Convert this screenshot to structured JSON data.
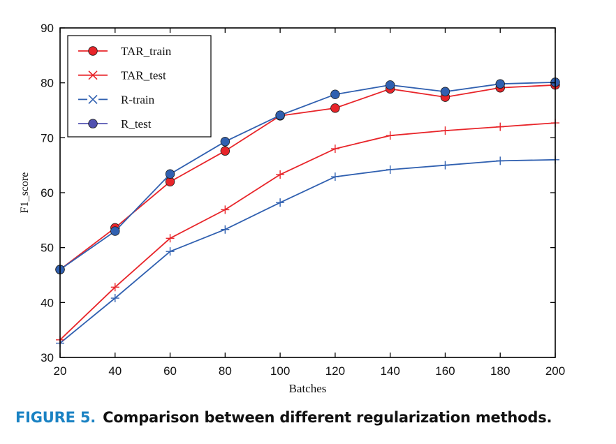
{
  "caption": {
    "label": "FIGURE 5.",
    "text": "Comparison between different regularization methods."
  },
  "chart_data": {
    "type": "line",
    "title": "",
    "xlabel": "Batches",
    "ylabel": "F1_score",
    "xlim": [
      20,
      200
    ],
    "ylim": [
      30,
      90
    ],
    "xticks": [
      20,
      40,
      60,
      80,
      100,
      120,
      140,
      160,
      180,
      200
    ],
    "yticks": [
      30,
      40,
      50,
      60,
      70,
      80,
      90
    ],
    "grid": false,
    "legend_position": "top-left",
    "x": [
      20,
      40,
      60,
      80,
      100,
      120,
      140,
      160,
      180,
      200
    ],
    "series": [
      {
        "name": "TAR_train",
        "color": "#e8252a",
        "marker": "circle",
        "values": [
          46.0,
          53.6,
          62.0,
          67.6,
          74.0,
          75.4,
          78.9,
          77.4,
          79.1,
          79.6
        ]
      },
      {
        "name": "TAR_test",
        "color": "#e8252a",
        "marker": "plus",
        "values": [
          33.2,
          42.8,
          51.7,
          56.9,
          63.3,
          68.0,
          70.4,
          71.3,
          72.0,
          72.7
        ]
      },
      {
        "name": "R-train",
        "color": "#3060b0",
        "marker": "plus",
        "values": [
          32.6,
          40.8,
          49.3,
          53.3,
          58.2,
          62.9,
          64.2,
          65.0,
          65.8,
          66.0
        ]
      },
      {
        "name": "R_test",
        "color": "#3060b0",
        "marker": "circle",
        "values": [
          46.0,
          53.0,
          63.4,
          69.3,
          74.1,
          77.9,
          79.6,
          78.4,
          79.8,
          80.1
        ]
      }
    ],
    "legend_entries": [
      {
        "label": "TAR_train",
        "color": "#e8252a",
        "marker": "circle"
      },
      {
        "label": "TAR_test",
        "color": "#e8252a",
        "marker": "x"
      },
      {
        "label": "R-train",
        "color": "#3060b0",
        "marker": "x"
      },
      {
        "label": "R_test",
        "color": "#5050b0",
        "marker": "circle"
      }
    ]
  }
}
